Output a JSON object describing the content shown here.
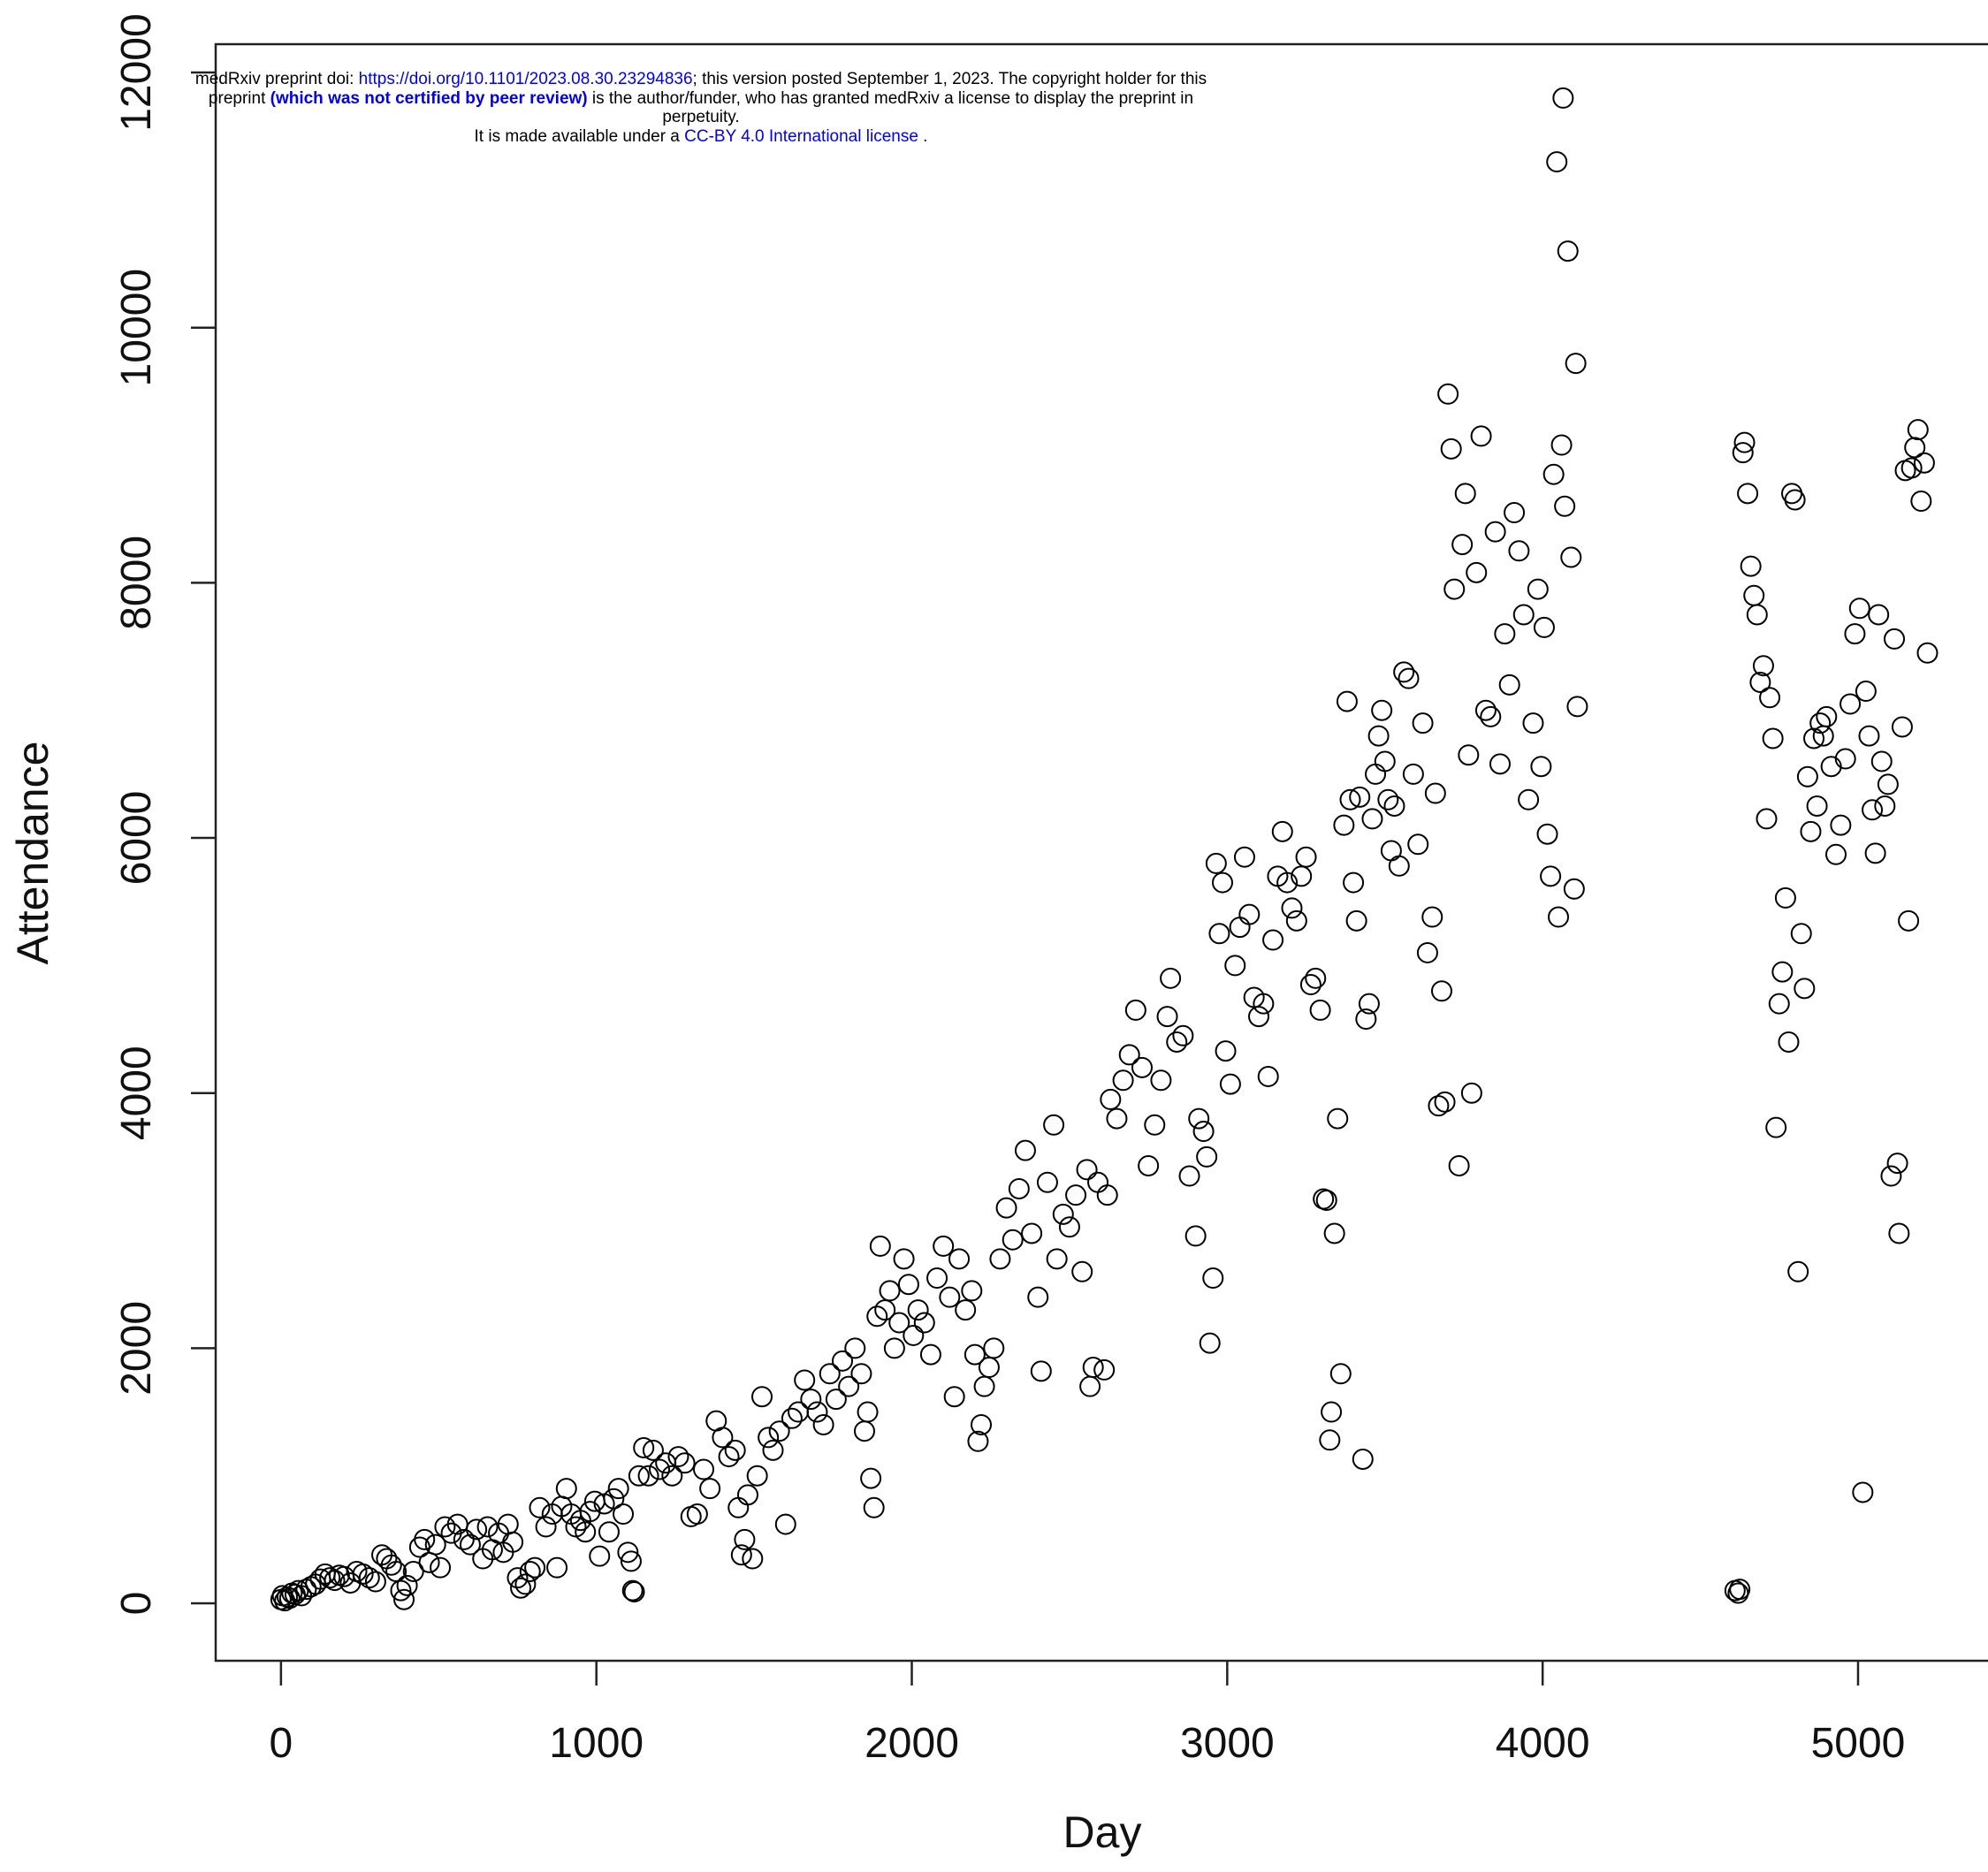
{
  "banner": {
    "line1_prefix": "medRxiv preprint doi: ",
    "doi_link": "https://doi.org/10.1101/2023.08.30.23294836",
    "line1_suffix": "; this version posted September 1, 2023. The copyright holder for this",
    "line2_prefix": "preprint ",
    "line2_bold": "(which was not certified by peer review)",
    "line2_suffix": " is the author/funder, who has granted medRxiv a license to display the preprint in",
    "line3": "perpetuity.",
    "line4_prefix": "It is made available under a ",
    "license_link": "CC-BY 4.0 International license",
    "line4_suffix": " ."
  },
  "chart_data": {
    "type": "scatter",
    "x_label": "Day",
    "y_label": "Attendance",
    "xlim": [
      -207,
      5412
    ],
    "ylim": [
      -450,
      12222
    ],
    "xticks": [
      0,
      1000,
      2000,
      3000,
      4000,
      5000
    ],
    "yticks": [
      0,
      2000,
      4000,
      6000,
      8000,
      10000,
      12000
    ],
    "color": "#000000",
    "x": [
      0,
      5,
      12,
      20,
      28,
      35,
      45,
      55,
      65,
      80,
      95,
      110,
      125,
      140,
      155,
      170,
      185,
      200,
      220,
      240,
      260,
      280,
      300,
      320,
      335,
      350,
      365,
      380,
      390,
      400,
      420,
      440,
      455,
      470,
      490,
      505,
      520,
      540,
      560,
      580,
      600,
      620,
      640,
      655,
      670,
      690,
      705,
      720,
      735,
      750,
      760,
      775,
      790,
      805,
      820,
      840,
      860,
      875,
      890,
      905,
      920,
      935,
      950,
      965,
      980,
      995,
      1010,
      1025,
      1040,
      1055,
      1070,
      1085,
      1100,
      1110,
      1115,
      1120,
      1135,
      1150,
      1165,
      1180,
      1200,
      1220,
      1240,
      1260,
      1280,
      1300,
      1320,
      1340,
      1360,
      1380,
      1400,
      1420,
      1440,
      1450,
      1460,
      1470,
      1480,
      1495,
      1510,
      1525,
      1545,
      1560,
      1580,
      1600,
      1620,
      1640,
      1660,
      1680,
      1700,
      1720,
      1740,
      1760,
      1780,
      1800,
      1820,
      1840,
      1850,
      1860,
      1870,
      1880,
      1890,
      1900,
      1915,
      1930,
      1945,
      1960,
      1975,
      1990,
      2005,
      2020,
      2040,
      2060,
      2080,
      2100,
      2120,
      2135,
      2150,
      2170,
      2190,
      2200,
      2210,
      2220,
      2230,
      2245,
      2260,
      2280,
      2300,
      2320,
      2340,
      2360,
      2380,
      2400,
      2410,
      2430,
      2450,
      2460,
      2480,
      2500,
      2520,
      2540,
      2555,
      2565,
      2575,
      2590,
      2610,
      2620,
      2630,
      2650,
      2670,
      2690,
      2710,
      2730,
      2750,
      2770,
      2790,
      2810,
      2820,
      2840,
      2860,
      2880,
      2900,
      2910,
      2925,
      2935,
      2945,
      2955,
      2965,
      2975,
      2985,
      2995,
      3010,
      3025,
      3040,
      3055,
      3070,
      3085,
      3100,
      3115,
      3130,
      3145,
      3160,
      3175,
      3190,
      3205,
      3220,
      3235,
      3250,
      3265,
      3280,
      3295,
      3305,
      3315,
      3325,
      3330,
      3340,
      3350,
      3360,
      3370,
      3380,
      3390,
      3400,
      3410,
      3420,
      3430,
      3440,
      3450,
      3460,
      3470,
      3480,
      3490,
      3500,
      3510,
      3520,
      3530,
      3545,
      3560,
      3575,
      3590,
      3605,
      3620,
      3635,
      3650,
      3660,
      3670,
      3680,
      3690,
      3700,
      3710,
      3720,
      3735,
      3745,
      3755,
      3765,
      3775,
      3790,
      3805,
      3820,
      3835,
      3850,
      3865,
      3880,
      3895,
      3910,
      3925,
      3940,
      3955,
      3970,
      3985,
      3995,
      4005,
      4015,
      4025,
      4035,
      4045,
      4050,
      4060,
      4065,
      4070,
      4080,
      4090,
      4100,
      4105,
      4110,
      4610,
      4620,
      4625,
      4635,
      4640,
      4650,
      4660,
      4670,
      4680,
      4690,
      4700,
      4710,
      4720,
      4730,
      4740,
      4750,
      4760,
      4770,
      4780,
      4790,
      4800,
      4810,
      4820,
      4830,
      4840,
      4850,
      4860,
      4870,
      4880,
      4890,
      4900,
      4915,
      4930,
      4945,
      4960,
      4975,
      4990,
      5005,
      5015,
      5025,
      5035,
      5045,
      5055,
      5065,
      5075,
      5085,
      5095,
      5105,
      5115,
      5125,
      5130,
      5140,
      5150,
      5160,
      5170,
      5180,
      5190,
      5200,
      5210,
      5220
    ],
    "values": [
      30,
      60,
      20,
      50,
      40,
      80,
      70,
      100,
      60,
      110,
      130,
      150,
      190,
      230,
      200,
      180,
      220,
      210,
      160,
      250,
      230,
      200,
      170,
      380,
      350,
      300,
      250,
      100,
      30,
      140,
      250,
      440,
      500,
      320,
      460,
      280,
      600,
      550,
      620,
      500,
      460,
      580,
      350,
      600,
      420,
      550,
      400,
      620,
      480,
      200,
      120,
      150,
      250,
      280,
      750,
      600,
      700,
      280,
      760,
      900,
      700,
      600,
      650,
      560,
      720,
      800,
      370,
      780,
      560,
      820,
      900,
      700,
      400,
      330,
      100,
      90,
      1000,
      1220,
      1000,
      1200,
      1050,
      1100,
      1000,
      1150,
      1100,
      680,
      700,
      1050,
      900,
      1430,
      1300,
      1150,
      1200,
      750,
      380,
      500,
      850,
      350,
      1000,
      1620,
      1300,
      1200,
      1350,
      620,
      1450,
      1500,
      1750,
      1600,
      1500,
      1400,
      1800,
      1600,
      1900,
      1700,
      2000,
      1800,
      1350,
      1500,
      980,
      750,
      2250,
      2800,
      2300,
      2450,
      2000,
      2200,
      2700,
      2500,
      2100,
      2300,
      2200,
      1950,
      2550,
      2800,
      2400,
      1620,
      2700,
      2300,
      2450,
      1950,
      1270,
      1400,
      1700,
      1850,
      2000,
      2700,
      3100,
      2850,
      3250,
      3550,
      2900,
      2400,
      1820,
      3300,
      3750,
      2700,
      3050,
      2950,
      3200,
      2600,
      3400,
      1700,
      1850,
      3300,
      1830,
      3200,
      3950,
      3800,
      4100,
      4300,
      4650,
      4200,
      3430,
      3750,
      4100,
      4600,
      4900,
      4400,
      4450,
      3350,
      2880,
      3800,
      3700,
      3500,
      2040,
      2550,
      5800,
      5250,
      5650,
      4330,
      4070,
      5000,
      5300,
      5850,
      5400,
      4750,
      4600,
      4700,
      4130,
      5200,
      5700,
      6050,
      5650,
      5450,
      5350,
      5700,
      5850,
      4850,
      4900,
      4650,
      3170,
      3160,
      1280,
      1500,
      2900,
      3800,
      1800,
      6100,
      7070,
      6300,
      5650,
      5350,
      6320,
      1130,
      4580,
      4700,
      6150,
      6500,
      6800,
      7000,
      6600,
      6300,
      5900,
      6250,
      5780,
      7300,
      7250,
      6500,
      5950,
      6900,
      5100,
      5380,
      6350,
      3900,
      4800,
      3930,
      9480,
      9050,
      7950,
      3430,
      8300,
      8700,
      6650,
      4000,
      8080,
      9150,
      7000,
      6950,
      8400,
      6580,
      7600,
      7200,
      8550,
      8250,
      7750,
      6300,
      6900,
      7950,
      6560,
      7650,
      6030,
      5700,
      8850,
      11300,
      5380,
      9080,
      11800,
      8600,
      10600,
      8200,
      5600,
      9720,
      7030,
      100,
      80,
      110,
      9020,
      9100,
      8700,
      8130,
      7900,
      7750,
      7220,
      7350,
      6150,
      7100,
      6780,
      3730,
      4700,
      4950,
      5530,
      4400,
      8700,
      8650,
      2600,
      5250,
      4820,
      6480,
      6050,
      6780,
      6250,
      6900,
      6800,
      6950,
      6560,
      5870,
      6100,
      6620,
      7050,
      7600,
      7800,
      870,
      7150,
      6800,
      6220,
      5880,
      7750,
      6600,
      6250,
      6420,
      3350,
      7560,
      3450,
      2900,
      6870,
      8880,
      5350,
      8900,
      9060,
      9200,
      8640,
      8940,
      7450
    ]
  }
}
